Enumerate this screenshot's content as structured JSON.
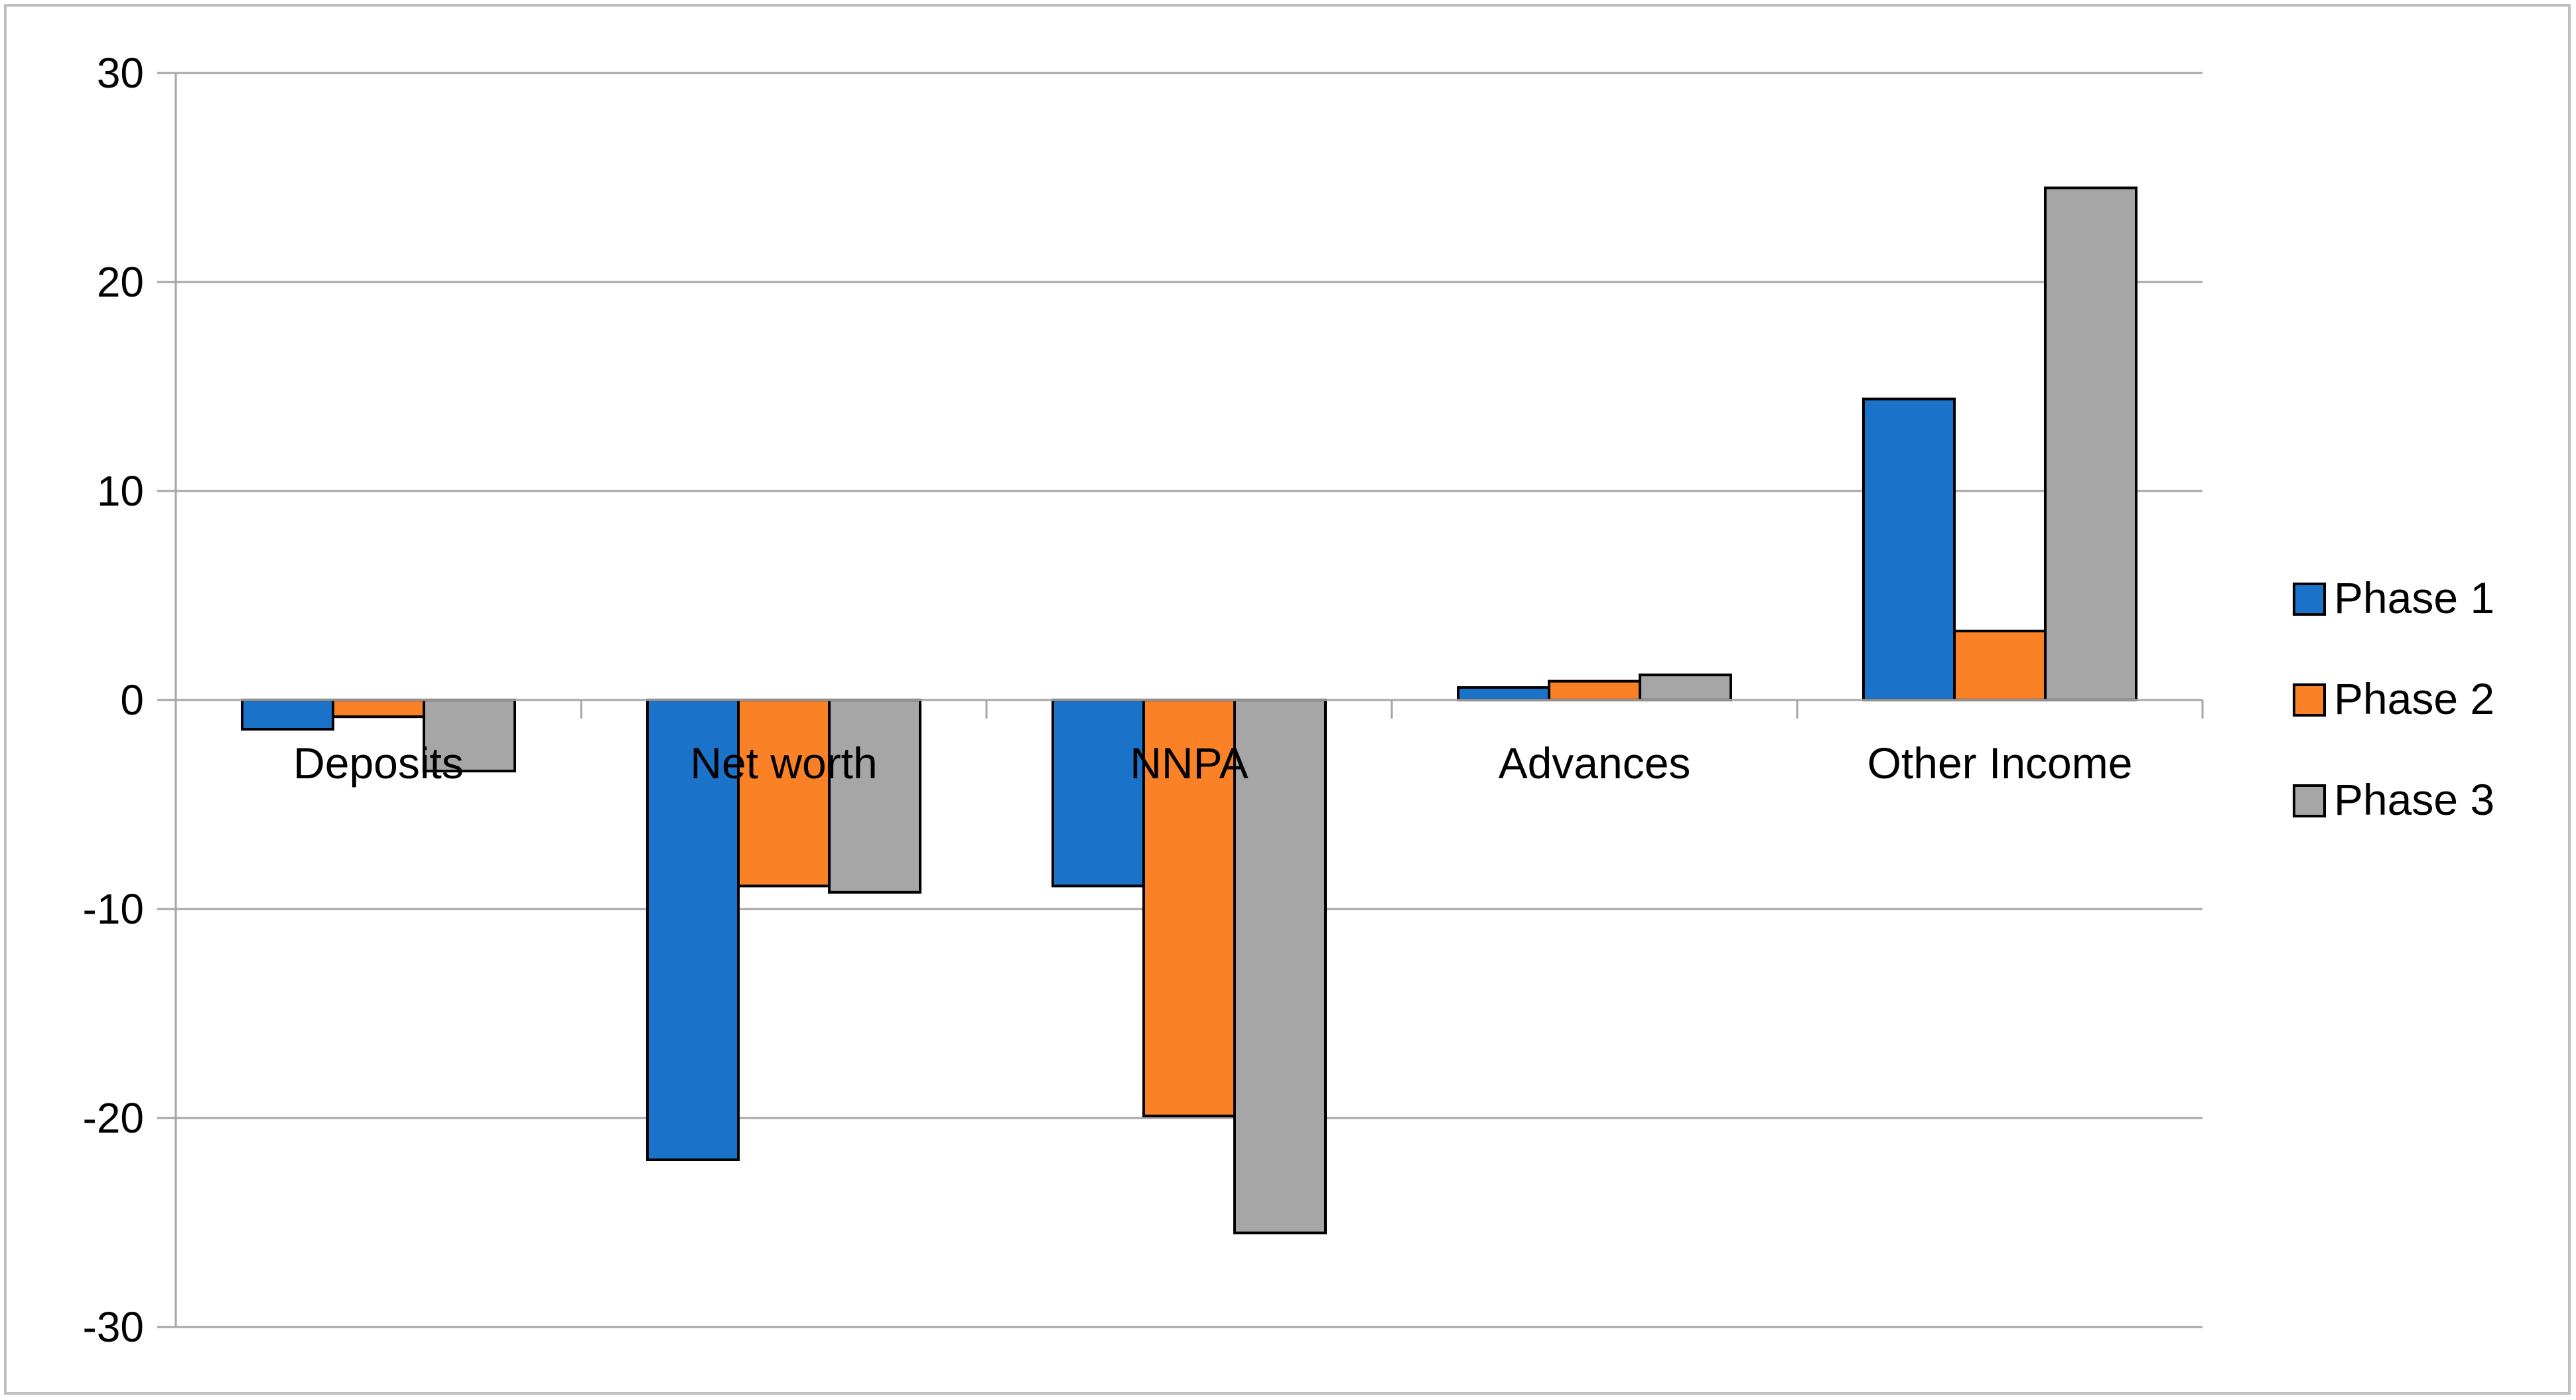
{
  "chart_data": {
    "type": "bar",
    "title": "",
    "xlabel": "",
    "ylabel": "",
    "categories": [
      "Deposits",
      "Net worth",
      "NNPA",
      "Advances",
      "Other Income"
    ],
    "series": [
      {
        "name": "Phase 1",
        "color": "#1a73c9",
        "values": [
          -1.4,
          -22.0,
          -8.9,
          0.6,
          14.4
        ]
      },
      {
        "name": "Phase 2",
        "color": "#fb8127",
        "values": [
          -0.8,
          -8.9,
          -19.9,
          0.9,
          3.3
        ]
      },
      {
        "name": "Phase 3",
        "color": "#a6a6a6",
        "values": [
          -3.4,
          -9.2,
          -25.5,
          1.2,
          24.5
        ]
      }
    ],
    "ylim": [
      -30,
      30
    ],
    "yticks": [
      "30",
      "20",
      "10",
      "0",
      "-10",
      "-20",
      "-30"
    ],
    "ytick_values": [
      30,
      20,
      10,
      0,
      -10,
      -20,
      -30
    ],
    "grid": true,
    "legend_position": "right"
  }
}
